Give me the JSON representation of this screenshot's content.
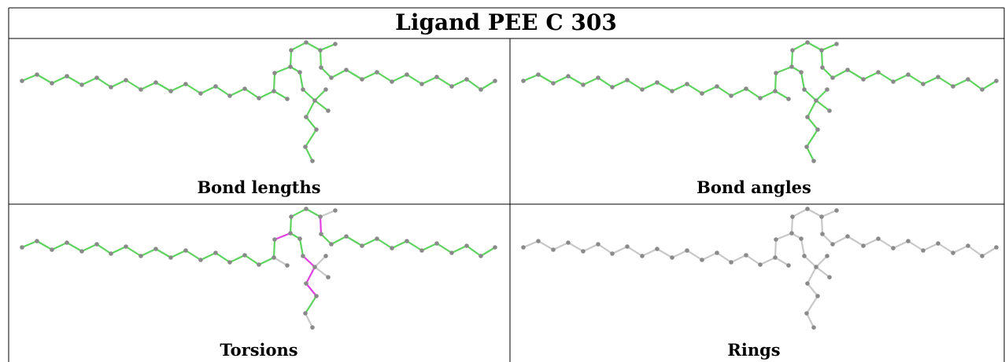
{
  "title": "Ligand PEE C 303",
  "panels": [
    {
      "label": "Bond lengths",
      "scheme": "all-green"
    },
    {
      "label": "Bond angles",
      "scheme": "all-green"
    },
    {
      "label": "Torsions",
      "scheme": "torsion"
    },
    {
      "label": "Rings",
      "scheme": "gray"
    }
  ],
  "colors": {
    "atom": "#8a8a8a",
    "ok_bond": "#5fd35f",
    "outlier_bond": "#e040e0",
    "neutral_bond": "#c8c8c8",
    "border": "#000000"
  }
}
